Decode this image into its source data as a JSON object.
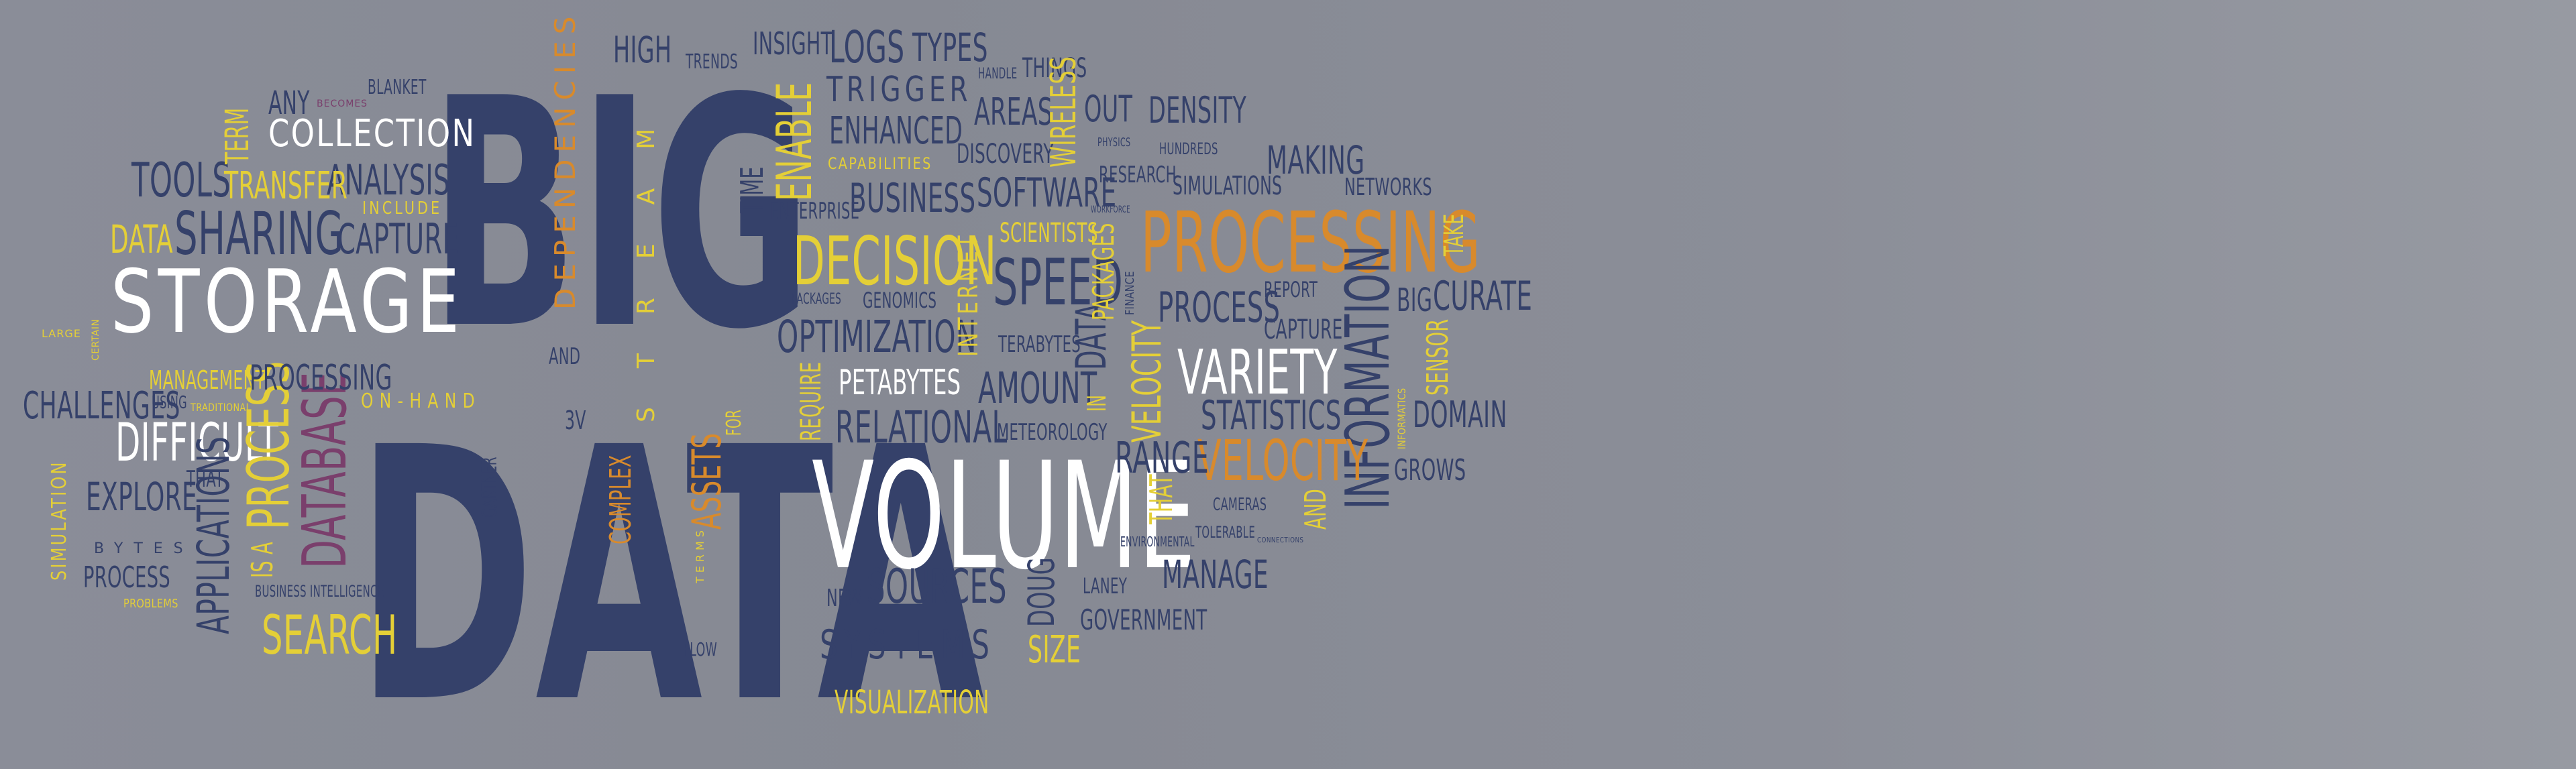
{
  "colors": {
    "navy": "#35416a",
    "yellow": "#e4cf37",
    "orange": "#d88a2c",
    "white": "#ffffff",
    "magenta": "#7a3f6c",
    "background": "#888b96"
  },
  "words": [
    {
      "text": "BIG",
      "color": "navy"
    },
    {
      "text": "DATA",
      "color": "navy"
    },
    {
      "text": "VOLUME",
      "color": "white"
    },
    {
      "text": "STORAGE",
      "color": "white"
    },
    {
      "text": "PROCESSING",
      "color": "orange"
    },
    {
      "text": "INFORMATION",
      "color": "navy"
    },
    {
      "text": "DECISION",
      "color": "yellow"
    },
    {
      "text": "VARIETY",
      "color": "white"
    },
    {
      "text": "VELOCITY",
      "color": "orange"
    },
    {
      "text": "SPEED",
      "color": "navy"
    },
    {
      "text": "SHARING",
      "color": "navy"
    },
    {
      "text": "COLLECTION",
      "color": "white"
    },
    {
      "text": "DIFFICULT",
      "color": "white"
    },
    {
      "text": "SEARCH",
      "color": "yellow"
    },
    {
      "text": "DATABASE",
      "color": "magenta"
    },
    {
      "text": "PROCESS",
      "color": "yellow"
    },
    {
      "text": "SOURCES",
      "color": "navy"
    },
    {
      "text": "SYSTEMS",
      "color": "navy"
    },
    {
      "text": "RELATIONAL",
      "color": "navy"
    },
    {
      "text": "OPTIMIZATION",
      "color": "navy"
    },
    {
      "text": "PETABYTES",
      "color": "white"
    },
    {
      "text": "AMOUNT",
      "color": "navy"
    },
    {
      "text": "LOGS",
      "color": "navy"
    },
    {
      "text": "TYPES",
      "color": "navy"
    },
    {
      "text": "TRIGGER",
      "color": "navy"
    },
    {
      "text": "ENHANCED",
      "color": "navy"
    },
    {
      "text": "BUSINESS",
      "color": "navy"
    },
    {
      "text": "SOFTWARE",
      "color": "navy"
    },
    {
      "text": "ENABLE",
      "color": "yellow"
    },
    {
      "text": "INSIGHT",
      "color": "navy"
    },
    {
      "text": "HIGH",
      "color": "navy"
    },
    {
      "text": "TRENDS",
      "color": "navy"
    },
    {
      "text": "DEPENDENCIES",
      "color": "orange"
    },
    {
      "text": "STREAM",
      "color": "yellow"
    },
    {
      "text": "TIME",
      "color": "navy"
    },
    {
      "text": "AND",
      "color": "navy"
    },
    {
      "text": "TOOLS",
      "color": "navy"
    },
    {
      "text": "ANALYSIS",
      "color": "navy"
    },
    {
      "text": "CAPTURE",
      "color": "navy"
    },
    {
      "text": "TRANSFER",
      "color": "yellow"
    },
    {
      "text": "ANY",
      "color": "navy"
    },
    {
      "text": "TERM",
      "color": "yellow"
    },
    {
      "text": "BLANKET",
      "color": "navy"
    },
    {
      "text": "BECOMES",
      "color": "magenta"
    },
    {
      "text": "INCLUDE",
      "color": "yellow"
    },
    {
      "text": "DATA",
      "color": "yellow"
    },
    {
      "text": "CHALLENGES",
      "color": "navy"
    },
    {
      "text": "USING",
      "color": "navy"
    },
    {
      "text": "MANAGEMENT",
      "color": "yellow"
    },
    {
      "text": "PROCESSING",
      "color": "navy"
    },
    {
      "text": "ON-HAND",
      "color": "yellow"
    },
    {
      "text": "TRADITIONAL",
      "color": "yellow"
    },
    {
      "text": "LARGE",
      "color": "yellow"
    },
    {
      "text": "CERTAIN",
      "color": "yellow"
    },
    {
      "text": "EXPLORE",
      "color": "navy"
    },
    {
      "text": "THAT",
      "color": "navy"
    },
    {
      "text": "SIMULATION",
      "color": "yellow"
    },
    {
      "text": "BYTES",
      "color": "navy"
    },
    {
      "text": "PROCESS",
      "color": "navy"
    },
    {
      "text": "PROBLEMS",
      "color": "yellow"
    },
    {
      "text": "APPLICATIONS",
      "color": "navy"
    },
    {
      "text": "IS A",
      "color": "yellow"
    },
    {
      "text": "BUSINESS INTELLIGENCE",
      "color": "navy"
    },
    {
      "text": "3V",
      "color": "navy"
    },
    {
      "text": "GARTNER",
      "color": "navy"
    },
    {
      "text": "COMPLEX",
      "color": "orange"
    },
    {
      "text": "ASSETS",
      "color": "orange"
    },
    {
      "text": "FOR",
      "color": "yellow"
    },
    {
      "text": "TERMS",
      "color": "yellow"
    },
    {
      "text": "FLOW",
      "color": "navy"
    },
    {
      "text": "REQUIRE",
      "color": "yellow"
    },
    {
      "text": "NEW",
      "color": "navy"
    },
    {
      "text": "VISUALIZATION",
      "color": "yellow"
    },
    {
      "text": "SIZE",
      "color": "yellow"
    },
    {
      "text": "DOUG",
      "color": "navy"
    },
    {
      "text": "LANEY",
      "color": "navy"
    },
    {
      "text": "GOVERNMENT",
      "color": "navy"
    },
    {
      "text": "METEOROLOGY",
      "color": "navy"
    },
    {
      "text": "ENVIRONMENTAL",
      "color": "navy"
    },
    {
      "text": "MANAGE",
      "color": "navy"
    },
    {
      "text": "RANGE",
      "color": "navy"
    },
    {
      "text": "THAT",
      "color": "yellow"
    },
    {
      "text": "CAMERAS",
      "color": "navy"
    },
    {
      "text": "TOLERABLE",
      "color": "navy"
    },
    {
      "text": "CONNECTIONS",
      "color": "navy"
    },
    {
      "text": "AND",
      "color": "yellow"
    },
    {
      "text": "STATISTICS",
      "color": "navy"
    },
    {
      "text": "CAPTURE",
      "color": "navy"
    },
    {
      "text": "REPORT",
      "color": "navy"
    },
    {
      "text": "PROCESS",
      "color": "navy"
    },
    {
      "text": "VELOCITY",
      "color": "yellow"
    },
    {
      "text": "IN",
      "color": "yellow"
    },
    {
      "text": "DATA",
      "color": "navy"
    },
    {
      "text": "TERABYTES",
      "color": "navy"
    },
    {
      "text": "INTERNET",
      "color": "yellow"
    },
    {
      "text": "GENOMICS",
      "color": "navy"
    },
    {
      "text": "PACKAGES",
      "color": "navy"
    },
    {
      "text": "ENTERPRISE",
      "color": "navy"
    },
    {
      "text": "CAPABILITIES",
      "color": "yellow"
    },
    {
      "text": "DISCOVERY",
      "color": "navy"
    },
    {
      "text": "AREAS",
      "color": "navy"
    },
    {
      "text": "HANDLE",
      "color": "navy"
    },
    {
      "text": "THINGS",
      "color": "navy"
    },
    {
      "text": "WIRELESS",
      "color": "yellow"
    },
    {
      "text": "OUT",
      "color": "navy"
    },
    {
      "text": "DENSITY",
      "color": "navy"
    },
    {
      "text": "PHYSICS",
      "color": "navy"
    },
    {
      "text": "HUNDREDS",
      "color": "navy"
    },
    {
      "text": "RESEARCH",
      "color": "navy"
    },
    {
      "text": "SIMULATIONS",
      "color": "navy"
    },
    {
      "text": "MAKING",
      "color": "navy"
    },
    {
      "text": "NETWORKS",
      "color": "navy"
    },
    {
      "text": "WORKFORCE",
      "color": "navy"
    },
    {
      "text": "SCIENTISTS",
      "color": "yellow"
    },
    {
      "text": "PACKAGES",
      "color": "yellow"
    },
    {
      "text": "FINANCE",
      "color": "navy"
    },
    {
      "text": "TAKE",
      "color": "yellow"
    },
    {
      "text": "BIG",
      "color": "navy"
    },
    {
      "text": "CURATE",
      "color": "navy"
    },
    {
      "text": "SENSOR",
      "color": "yellow"
    },
    {
      "text": "INFORMATICS",
      "color": "yellow"
    },
    {
      "text": "DOMAIN",
      "color": "navy"
    },
    {
      "text": "GROWS",
      "color": "navy"
    }
  ]
}
